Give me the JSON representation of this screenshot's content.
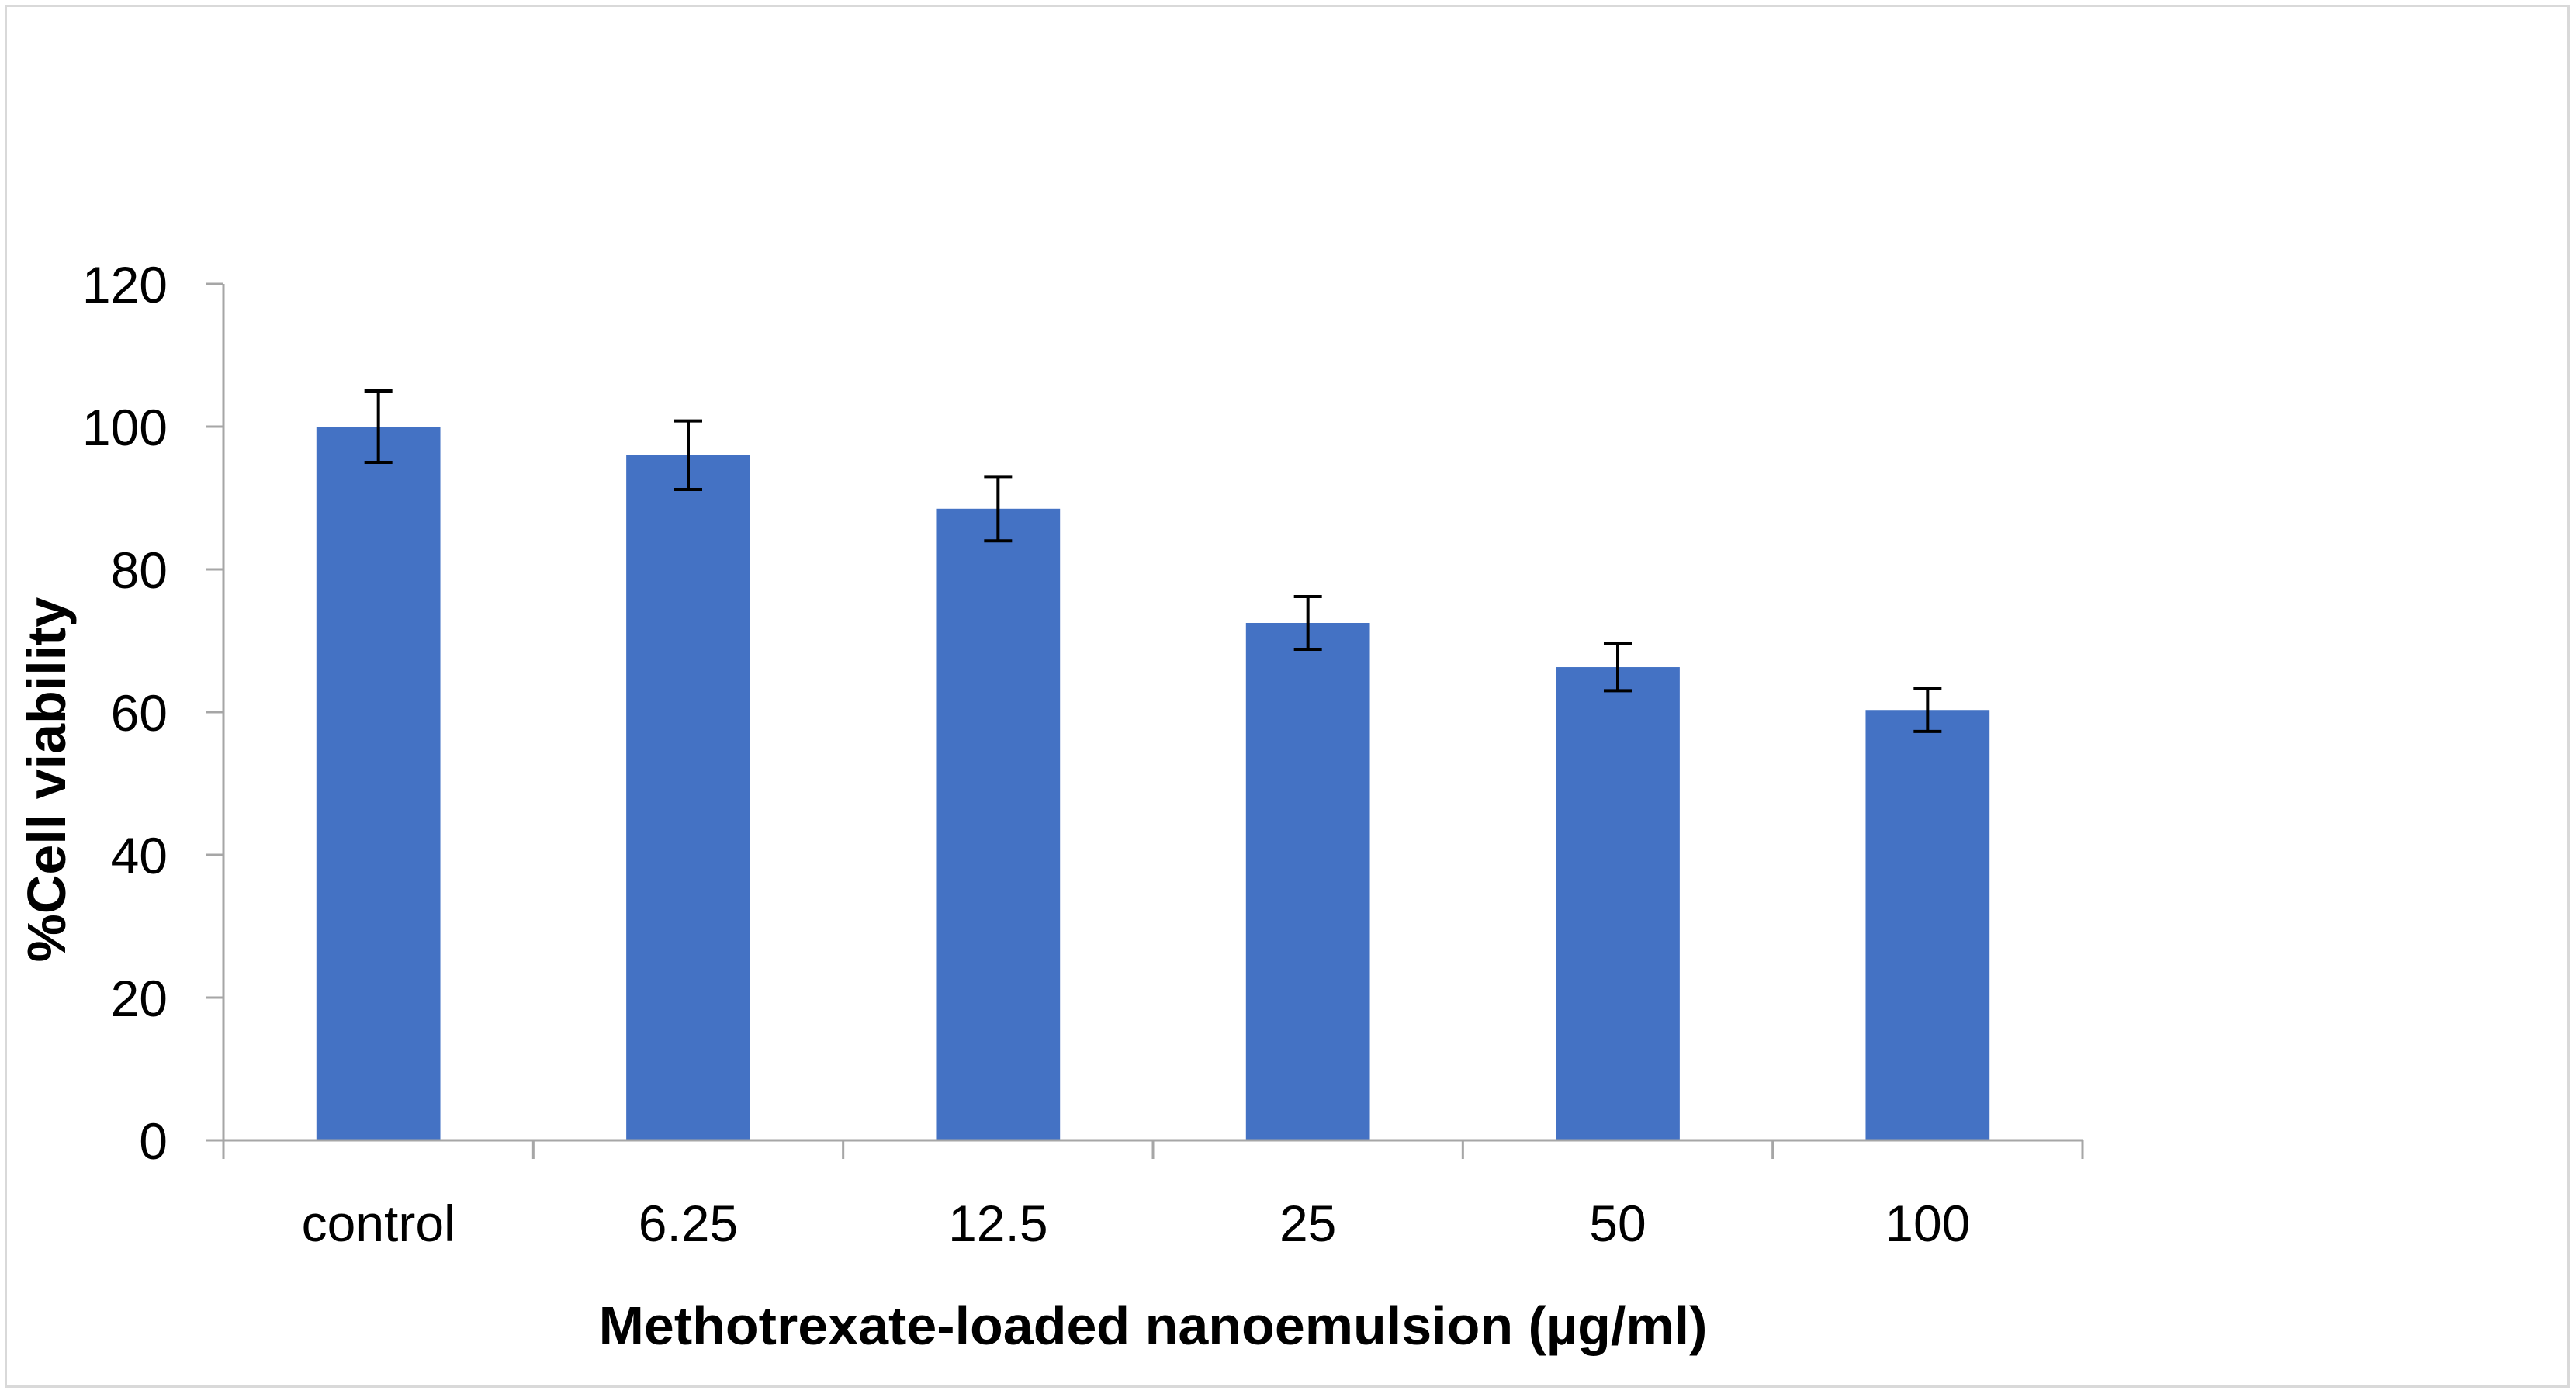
{
  "chart_data": {
    "type": "bar",
    "title": "",
    "xlabel": "Methotrexate-loaded nanoemulsion  (µg/ml)",
    "ylabel": "%Cell viability",
    "categories": [
      "control",
      "6.25",
      "12.5",
      "25",
      "50",
      "100"
    ],
    "values": [
      100,
      96,
      88.5,
      72.5,
      66.3,
      60.3
    ],
    "errors": [
      5,
      4.8,
      4.5,
      3.7,
      3.3,
      3.0
    ],
    "ylim": [
      0,
      120
    ],
    "yticks": [
      0,
      20,
      40,
      60,
      80,
      100,
      120
    ],
    "ytick_labels": [
      "0",
      "20",
      "40",
      "60",
      "80",
      "100",
      "120"
    ],
    "grid": false,
    "legend": "none",
    "colors": {
      "bar": "#4472c4",
      "axis": "#a6a6a6",
      "error_bar": "#000000"
    }
  }
}
